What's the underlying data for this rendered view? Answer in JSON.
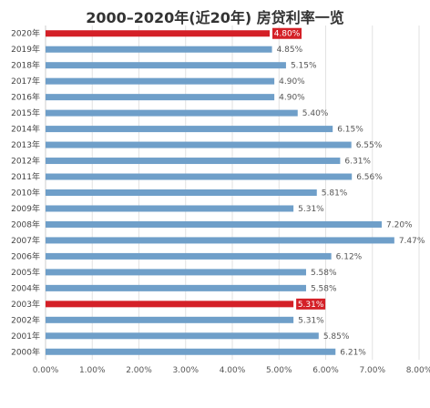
{
  "chart_data": {
    "type": "bar",
    "orientation": "horizontal",
    "title": "2000–2020年(近20年) 房贷利率一览",
    "categories": [
      "2020年",
      "2019年",
      "2018年",
      "2017年",
      "2016年",
      "2015年",
      "2014年",
      "2013年",
      "2012年",
      "2011年",
      "2010年",
      "2009年",
      "2008年",
      "2007年",
      "2006年",
      "2005年",
      "2004年",
      "2003年",
      "2002年",
      "2001年",
      "2000年"
    ],
    "values": [
      4.8,
      4.85,
      5.15,
      4.9,
      4.9,
      5.4,
      6.15,
      6.55,
      6.31,
      6.56,
      5.81,
      5.31,
      7.2,
      7.47,
      6.12,
      5.58,
      5.58,
      5.31,
      5.31,
      5.85,
      6.21
    ],
    "value_labels": [
      "4.80%",
      "4.85%",
      "5.15%",
      "4.90%",
      "4.90%",
      "5.40%",
      "6.15%",
      "6.55%",
      "6.31%",
      "6.56%",
      "5.81%",
      "5.31%",
      "7.20%",
      "7.47%",
      "6.12%",
      "5.58%",
      "5.58%",
      "5.31%",
      "5.31%",
      "5.85%",
      "6.21%"
    ],
    "highlighted": [
      "2020年",
      "2003年"
    ],
    "xlim": [
      0,
      8
    ],
    "x_ticks": [
      "0.00%",
      "1.00%",
      "2.00%",
      "3.00%",
      "4.00%",
      "5.00%",
      "6.00%",
      "7.00%",
      "8.00%"
    ],
    "xlabel": "",
    "ylabel": "",
    "grid": true,
    "colors": {
      "bar": "#6f9fc9",
      "highlight": "#d42027",
      "grid": "#e2e2e2"
    }
  }
}
